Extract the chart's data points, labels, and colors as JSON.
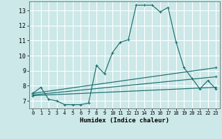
{
  "xlabel": "Humidex (Indice chaleur)",
  "xlim": [
    -0.5,
    23.5
  ],
  "ylim": [
    6.5,
    13.6
  ],
  "yticks": [
    7,
    8,
    9,
    10,
    11,
    12,
    13
  ],
  "xticks": [
    0,
    1,
    2,
    3,
    4,
    5,
    6,
    7,
    8,
    9,
    10,
    11,
    12,
    13,
    14,
    15,
    16,
    17,
    18,
    19,
    20,
    21,
    22,
    23
  ],
  "bg_color": "#cce8e8",
  "grid_color": "#ffffff",
  "line_color": "#1a6e6e",
  "lines": [
    {
      "x": [
        0,
        1,
        2,
        3,
        4,
        5,
        6,
        7,
        8,
        9,
        10,
        11,
        12,
        13,
        14,
        15,
        16,
        17,
        18,
        19,
        20,
        21,
        22,
        23
      ],
      "y": [
        7.5,
        7.9,
        7.1,
        7.0,
        6.75,
        6.75,
        6.75,
        6.85,
        9.35,
        8.8,
        10.2,
        10.9,
        11.05,
        13.35,
        13.35,
        13.35,
        12.9,
        13.2,
        10.9,
        9.2,
        8.5,
        7.8,
        8.35,
        7.8
      ]
    },
    {
      "x": [
        0,
        23
      ],
      "y": [
        7.5,
        9.2
      ]
    },
    {
      "x": [
        0,
        23
      ],
      "y": [
        7.4,
        8.6
      ]
    },
    {
      "x": [
        0,
        23
      ],
      "y": [
        7.35,
        7.9
      ]
    }
  ]
}
